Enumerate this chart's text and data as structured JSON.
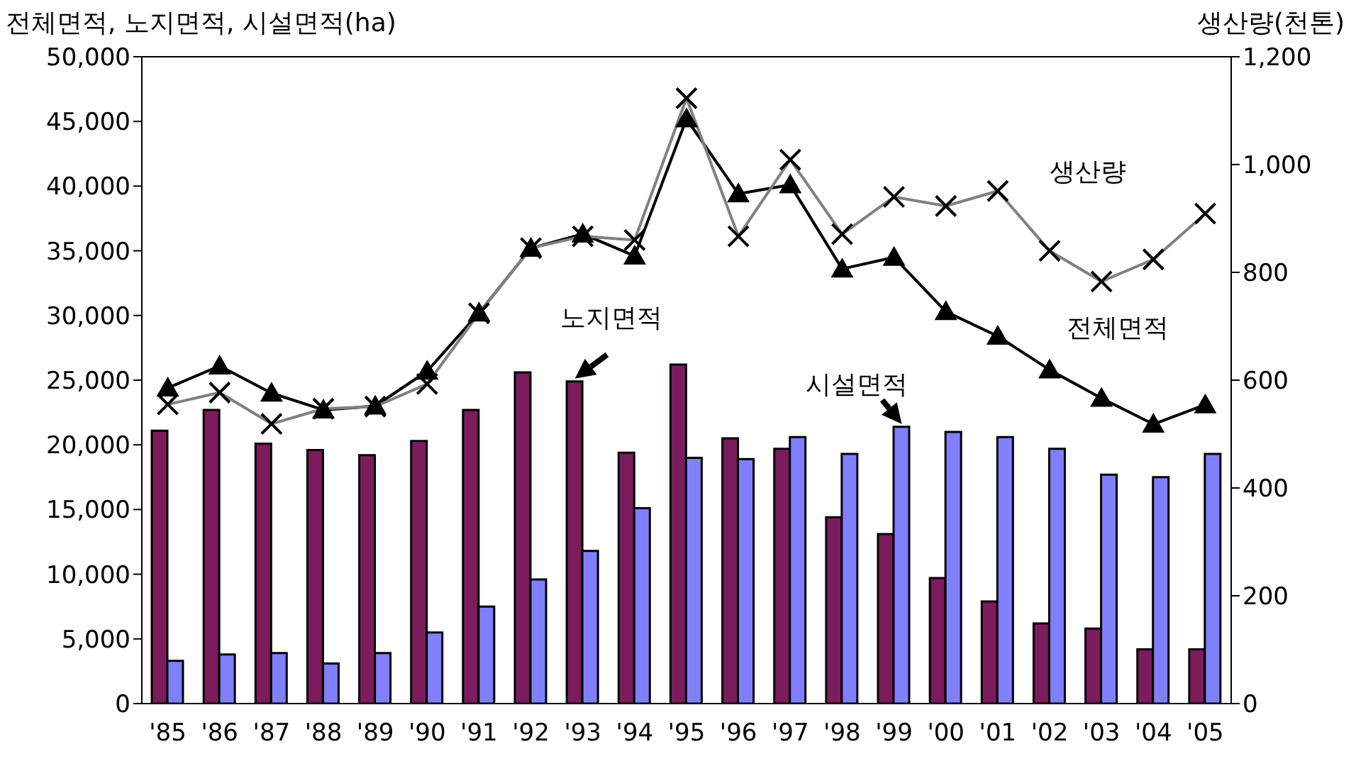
{
  "chart_data": {
    "type": "bar",
    "ylabel": "전체면적, 노지면적, 시설면적(ha)",
    "y2label": "생산량(천톤)",
    "categories": [
      "'85",
      "'86",
      "'87",
      "'88",
      "'89",
      "'90",
      "'91",
      "'92",
      "'93",
      "'94",
      "'95",
      "'96",
      "'97",
      "'98",
      "'99",
      "'00",
      "'01",
      "'02",
      "'03",
      "'04",
      "'05"
    ],
    "series": [
      {
        "name": "노지면적",
        "color": "#7b1c5c",
        "values": [
          21100,
          22700,
          20100,
          19600,
          19200,
          20300,
          22700,
          25600,
          24900,
          19400,
          26200,
          20500,
          19700,
          14400,
          13100,
          9700,
          7900,
          6200,
          5800,
          4200,
          4200
        ]
      },
      {
        "name": "시설면적",
        "color": "#8080ff",
        "values": [
          3300,
          3800,
          3900,
          3100,
          3900,
          5500,
          7500,
          9600,
          11800,
          15100,
          19000,
          18900,
          20600,
          19300,
          21400,
          21000,
          20600,
          19700,
          17700,
          17500,
          19300
        ]
      },
      {
        "name": "전체면적",
        "type": "line",
        "color": "#000000",
        "marker": "triangle",
        "values": [
          24400,
          26100,
          24000,
          22700,
          23000,
          25700,
          30200,
          35200,
          36300,
          34600,
          45200,
          39400,
          40100,
          33600,
          34500,
          30300,
          28400,
          25800,
          23600,
          21600,
          23100
        ]
      },
      {
        "name": "생산량",
        "type": "line",
        "axis": "y2",
        "color": "#808080",
        "marker": "cross",
        "values": [
          555,
          577,
          519,
          547,
          551,
          593,
          724,
          845,
          867,
          860,
          1123,
          867,
          1009,
          871,
          940,
          923,
          951,
          840,
          783,
          824,
          909
        ]
      }
    ],
    "ylim": [
      0,
      50000
    ],
    "yticks": [
      0,
      {
        "value": 5000,
        "label": "5,000"
      },
      {
        "value": 10000,
        "label": "10,000"
      },
      {
        "value": 15000,
        "label": "15,000"
      },
      {
        "value": 20000,
        "label": "20,000"
      },
      {
        "value": 25000,
        "label": "25,000"
      },
      {
        "value": 30000,
        "label": "30,000"
      },
      {
        "value": 35000,
        "label": "35,000"
      },
      {
        "value": 40000,
        "label": "40,000"
      },
      {
        "value": 45000,
        "label": "45,000"
      },
      {
        "value": 50000,
        "label": "50,000"
      }
    ],
    "y2lim": [
      0,
      1200
    ],
    "y2ticks": [
      0,
      200,
      400,
      600,
      800,
      {
        "value": 1000,
        "label": "1,000"
      },
      {
        "value": 1200,
        "label": "1,200"
      }
    ],
    "grid": false,
    "legend": false
  }
}
